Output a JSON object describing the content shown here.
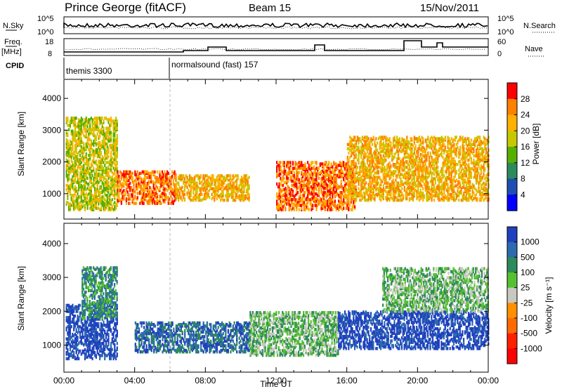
{
  "header": {
    "station": "Prince George (fitACF)",
    "beam": "Beam 15",
    "date": "15/Nov/2011"
  },
  "top_panels": {
    "nsky_label": "N.Sky",
    "nsky_ticks": [
      "10^5",
      "10^0"
    ],
    "nsearch_label": "N.Search",
    "nsearch_ticks": [
      "10^5",
      "10^0"
    ],
    "freq_label": "Freq.",
    "freq_unit": "[MHz]",
    "freq_ticks": [
      "18",
      "8"
    ],
    "nave_label": "Nave",
    "nave_ticks": [
      "60",
      "0"
    ],
    "cpid_label": "CPID",
    "cpid_segments": [
      {
        "label": "themis 3300",
        "start_hour": 0,
        "end_hour": 6
      },
      {
        "label": "normalsound (fast) 157",
        "start_hour": 6,
        "end_hour": 24
      }
    ]
  },
  "chart_data": [
    {
      "type": "heatmap",
      "name": "power",
      "ylabel": "Slant Range [km]",
      "xlabel": "Time UT",
      "xlim": [
        0,
        24
      ],
      "ylim": [
        200,
        4600
      ],
      "yticks": [
        "1000",
        "2000",
        "3000",
        "4000"
      ],
      "colorbar_label": "Power [dB]",
      "colorbar_ticks": [
        "28",
        "24",
        "20",
        "16",
        "12",
        "8",
        "4"
      ],
      "colorbar_colors": [
        "#ff0000",
        "#ff7f00",
        "#ffb000",
        "#c8c800",
        "#56b000",
        "#2d8a5a",
        "#1e4fb0",
        "#0000ff"
      ],
      "regions": [
        {
          "t0": 0.1,
          "t1": 3.0,
          "r0": 500,
          "r1": 3400,
          "level": 3
        },
        {
          "t0": 3.0,
          "t1": 6.3,
          "r0": 700,
          "r1": 1700,
          "level": 1
        },
        {
          "t0": 6.3,
          "t1": 10.5,
          "r0": 800,
          "r1": 1600,
          "level": 2
        },
        {
          "t0": 12.0,
          "t1": 16.5,
          "r0": 500,
          "r1": 2000,
          "level": 1
        },
        {
          "t0": 16.0,
          "t1": 24.0,
          "r0": 800,
          "r1": 2800,
          "level": 2
        }
      ]
    },
    {
      "type": "heatmap",
      "name": "velocity",
      "ylabel": "Slant Range [km]",
      "xlabel": "Time UT",
      "xlim": [
        0,
        24
      ],
      "ylim": [
        200,
        4600
      ],
      "xticks": [
        "00:00",
        "04:00",
        "08:00",
        "12:00",
        "16:00",
        "20:00",
        "00:00"
      ],
      "yticks": [
        "1000",
        "2000",
        "3000",
        "4000"
      ],
      "colorbar_label": "Velocity [m s⁻¹]",
      "colorbar_ticks": [
        "1000",
        "500",
        "100",
        "25",
        "-25",
        "-100",
        "-500",
        "-1000"
      ],
      "colorbar_colors": [
        "#2040c0",
        "#2d6ab0",
        "#2d8a5a",
        "#56c030",
        "#c8c8c0",
        "#ff9000",
        "#ff6a00",
        "#ff2000",
        "#ff0000"
      ],
      "regions": [
        {
          "t0": 0.1,
          "t1": 3.0,
          "r0": 600,
          "r1": 2200,
          "level": 0
        },
        {
          "t0": 1.0,
          "t1": 3.0,
          "r0": 1800,
          "r1": 3300,
          "level": 2
        },
        {
          "t0": 4.0,
          "t1": 10.5,
          "r0": 800,
          "r1": 1700,
          "level": 1
        },
        {
          "t0": 10.5,
          "t1": 15.5,
          "r0": 700,
          "r1": 2000,
          "level": 3
        },
        {
          "t0": 15.5,
          "t1": 24.0,
          "r0": 900,
          "r1": 2000,
          "level": 0
        },
        {
          "t0": 18.0,
          "t1": 24.0,
          "r0": 2000,
          "r1": 3300,
          "level": 3
        }
      ]
    }
  ]
}
